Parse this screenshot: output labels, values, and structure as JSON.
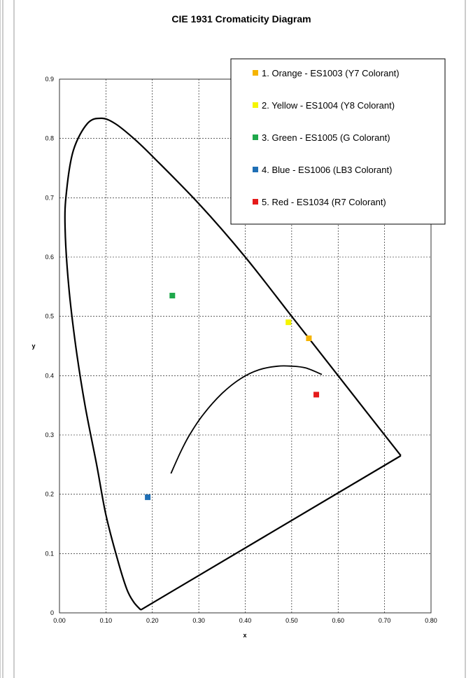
{
  "chart_data": {
    "type": "scatter",
    "title": "CIE 1931 Cromaticity Diagram",
    "xlabel": "x",
    "ylabel": "y",
    "xlim": [
      0,
      0.8
    ],
    "ylim": [
      0,
      0.9
    ],
    "x_ticks": [
      "0.00",
      "0.10",
      "0.20",
      "0.30",
      "0.40",
      "0.50",
      "0.60",
      "0.70",
      "0.80"
    ],
    "y_ticks": [
      "0",
      "0.1",
      "0.2",
      "0.3",
      "0.4",
      "0.5",
      "0.6",
      "0.7",
      "0.8",
      "0.9"
    ],
    "grid": true,
    "legend_position": "top-right",
    "series": [
      {
        "name": "1. Orange - ES1003 (Y7 Colorant)",
        "color": "#F5B400",
        "points": [
          [
            0.537,
            0.463
          ]
        ]
      },
      {
        "name": "2. Yellow - ES1004 (Y8 Colorant)",
        "color": "#F5F500",
        "points": [
          [
            0.493,
            0.49
          ]
        ]
      },
      {
        "name": "3. Green - ES1005 (G Colorant)",
        "color": "#1EA84B",
        "points": [
          [
            0.243,
            0.535
          ]
        ]
      },
      {
        "name": "4. Blue - ES1006 (LB3 Colorant)",
        "color": "#1F6FB5",
        "points": [
          [
            0.19,
            0.195
          ]
        ]
      },
      {
        "name": "5. Red - ES1034 (R7 Colorant)",
        "color": "#E51A1A",
        "points": [
          [
            0.553,
            0.368
          ]
        ]
      }
    ],
    "spectral_locus": [
      [
        0.175,
        0.005
      ],
      [
        0.16,
        0.018
      ],
      [
        0.145,
        0.04
      ],
      [
        0.125,
        0.09
      ],
      [
        0.1,
        0.165
      ],
      [
        0.08,
        0.25
      ],
      [
        0.055,
        0.35
      ],
      [
        0.035,
        0.45
      ],
      [
        0.02,
        0.55
      ],
      [
        0.012,
        0.65
      ],
      [
        0.015,
        0.71
      ],
      [
        0.03,
        0.78
      ],
      [
        0.06,
        0.825
      ],
      [
        0.09,
        0.834
      ],
      [
        0.12,
        0.825
      ],
      [
        0.16,
        0.8
      ],
      [
        0.2,
        0.77
      ],
      [
        0.3,
        0.69
      ],
      [
        0.4,
        0.6
      ],
      [
        0.5,
        0.5
      ],
      [
        0.6,
        0.4
      ],
      [
        0.735,
        0.265
      ]
    ],
    "purple_line": [
      [
        0.735,
        0.265
      ],
      [
        0.175,
        0.005
      ]
    ],
    "planckian_locus": [
      [
        0.24,
        0.235
      ],
      [
        0.26,
        0.27
      ],
      [
        0.28,
        0.3
      ],
      [
        0.31,
        0.335
      ],
      [
        0.35,
        0.37
      ],
      [
        0.39,
        0.395
      ],
      [
        0.43,
        0.41
      ],
      [
        0.47,
        0.416
      ],
      [
        0.5,
        0.416
      ],
      [
        0.53,
        0.413
      ],
      [
        0.565,
        0.402
      ]
    ]
  },
  "colors": {
    "curve": "#000000",
    "grid": "#000000",
    "background": "#ffffff"
  }
}
